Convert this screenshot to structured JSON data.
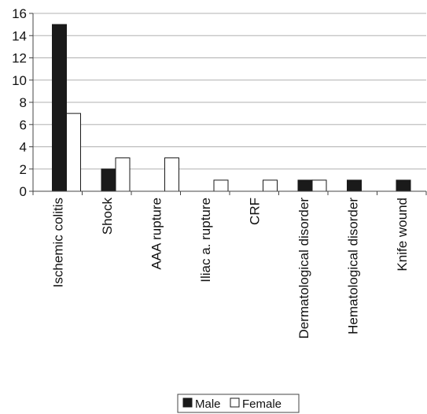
{
  "chart_data": {
    "type": "bar",
    "categories": [
      "Ischemic colitis",
      "Shock",
      "AAA rupture",
      "Iliac a. rupture",
      "CRF",
      "Dermatological disorder",
      "Hematological disorder",
      "Knife wound"
    ],
    "series": [
      {
        "name": "Male",
        "values": [
          15,
          2,
          0,
          0,
          0,
          1,
          1,
          1
        ],
        "color": "#1a1a1a"
      },
      {
        "name": "Female",
        "values": [
          7,
          3,
          3,
          1,
          1,
          1,
          0,
          0
        ],
        "color": "#ffffff"
      }
    ],
    "yticks": [
      "0",
      "2",
      "4",
      "6",
      "8",
      "10",
      "12",
      "14",
      "16"
    ],
    "ylim": [
      0,
      16
    ],
    "grid": true,
    "legend_position": "bottom"
  }
}
